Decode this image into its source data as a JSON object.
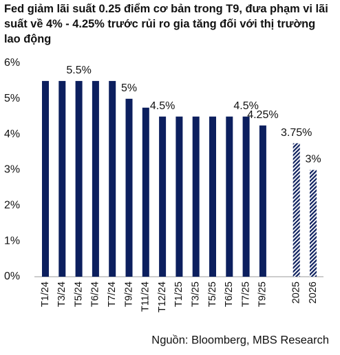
{
  "chart_data": {
    "type": "bar",
    "title": "Fed giảm lãi suất 0.25 điểm cơ bản trong T9, đưa phạm vi lãi suất về 4% - 4.25% trước rủi ro gia tăng đối với thị trường lao động",
    "categories": [
      "T1/24",
      "T3/24",
      "T5/24",
      "T6/24",
      "T7/24",
      "T9/24",
      "T11/24",
      "T12/24",
      "T1/25",
      "T3/25",
      "T5/25",
      "T6/25",
      "T7/25",
      "T9/25",
      "2025",
      "2026"
    ],
    "values": [
      5.5,
      5.5,
      5.5,
      5.5,
      5.5,
      5,
      4.75,
      4.5,
      4.5,
      4.5,
      4.5,
      4.5,
      4.5,
      4.25,
      3.75,
      3
    ],
    "value_labels": [
      null,
      null,
      "5.5%",
      null,
      null,
      "5%",
      null,
      "4.5%",
      null,
      null,
      null,
      null,
      "4.5%",
      "4.25%",
      "3.75%",
      "3%"
    ],
    "bar_styles": [
      "solid",
      "solid",
      "solid",
      "solid",
      "solid",
      "solid",
      "solid",
      "solid",
      "solid",
      "solid",
      "solid",
      "solid",
      "solid",
      "solid",
      "hatched",
      "hatched"
    ],
    "color": "#0c1f5e",
    "ylim": [
      0,
      6
    ],
    "yticks": [
      {
        "value": 0,
        "label": "0%"
      },
      {
        "value": 1,
        "label": "1%"
      },
      {
        "value": 2,
        "label": "2%"
      },
      {
        "value": 3,
        "label": "3%"
      },
      {
        "value": 4,
        "label": "4%"
      },
      {
        "value": 5,
        "label": "5%"
      },
      {
        "value": 6,
        "label": "6%"
      }
    ],
    "source": "Nguồn: Bloomberg, MBS Research"
  }
}
